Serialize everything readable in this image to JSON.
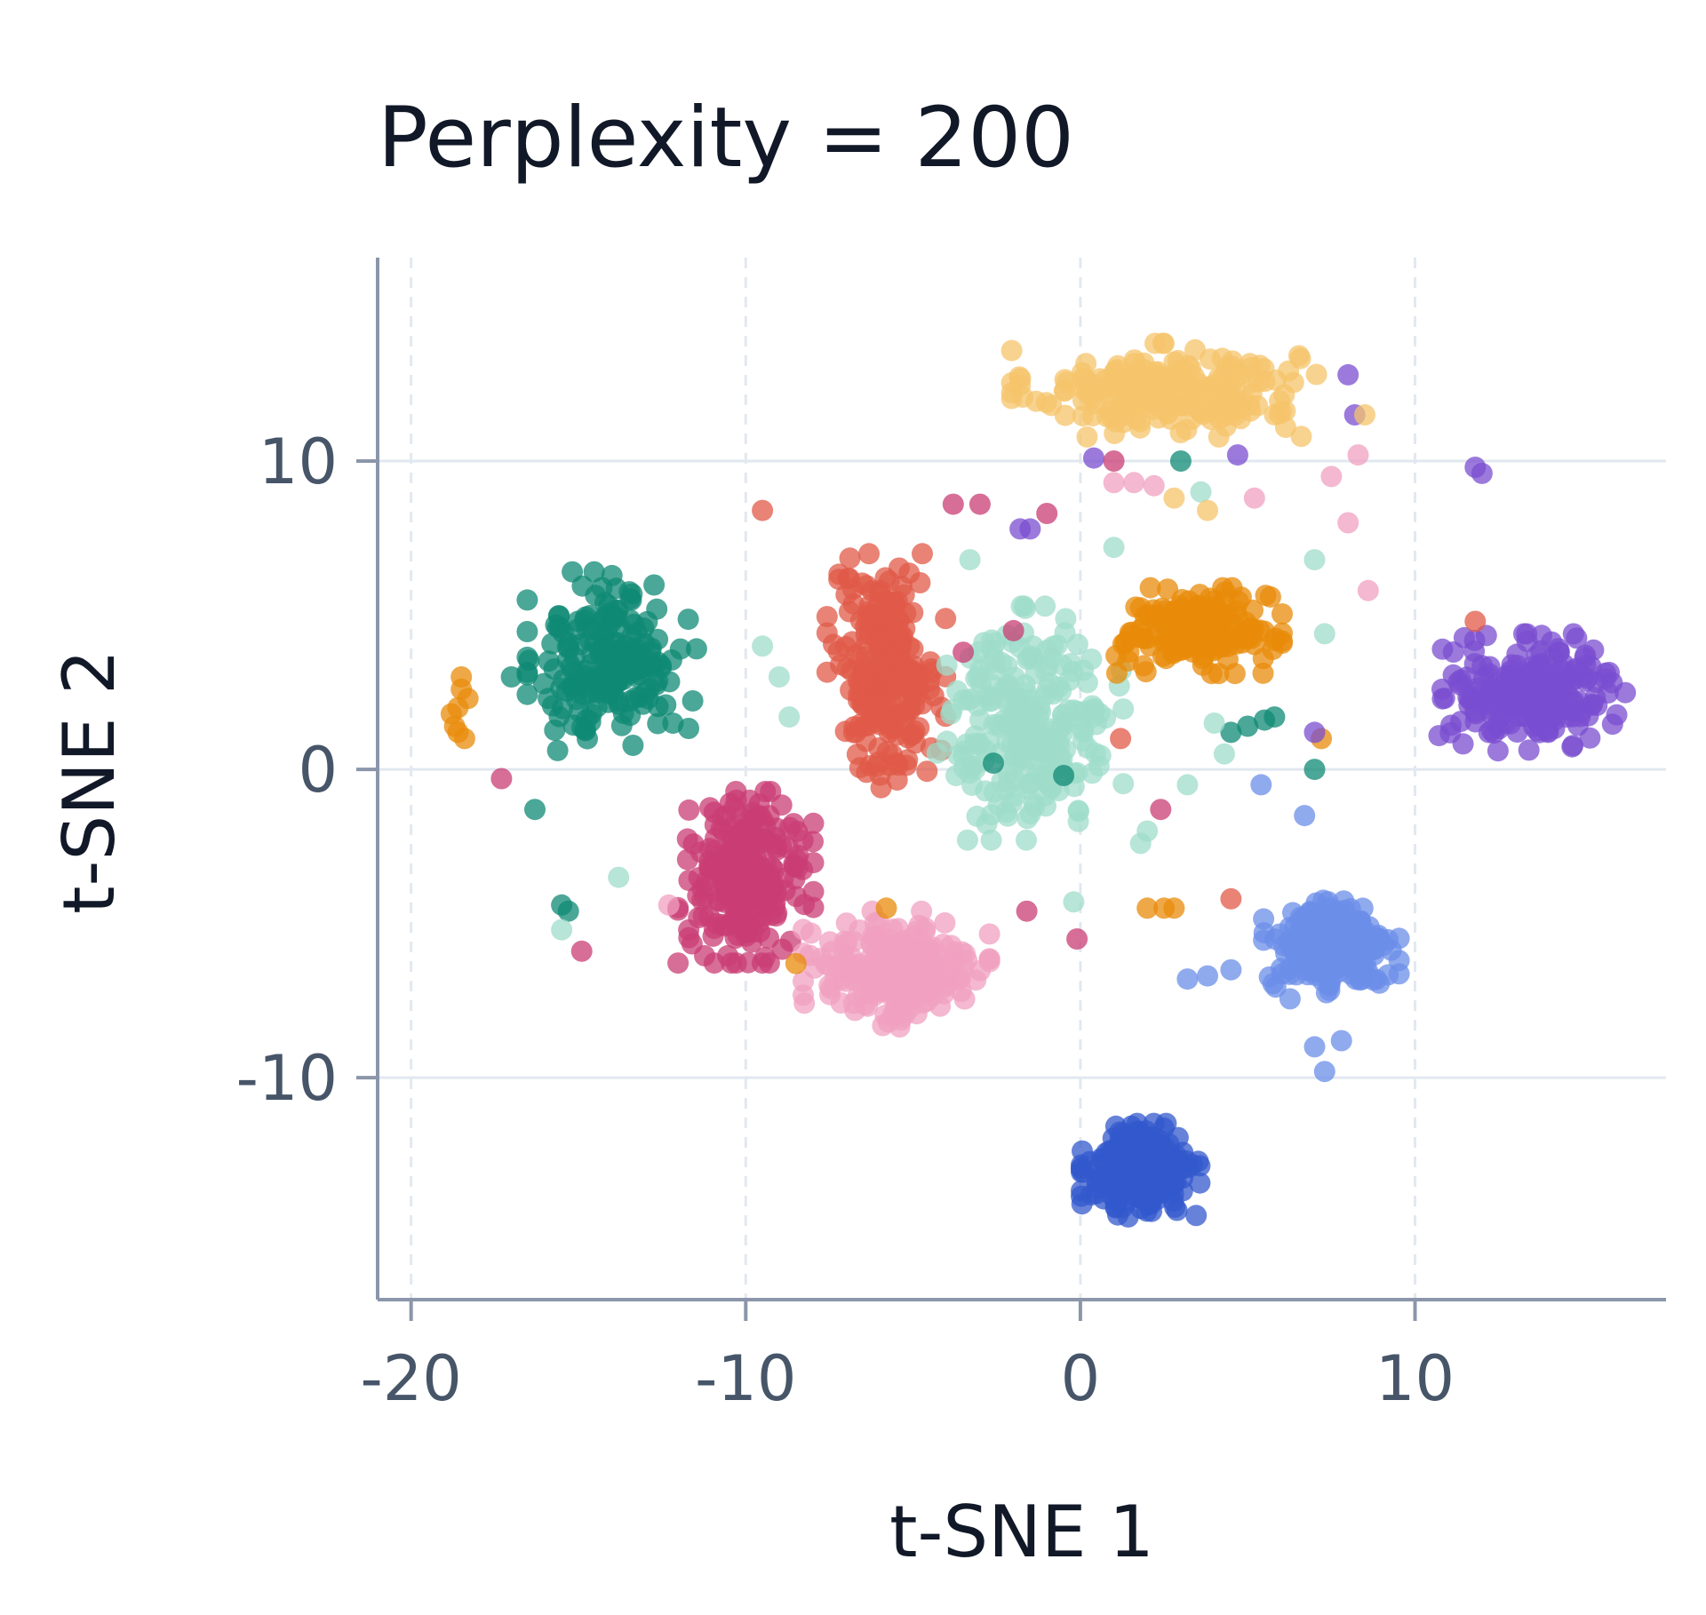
{
  "chart_data": {
    "type": "scatter",
    "title": "Perplexity = 200",
    "xlabel": "t-SNE 1",
    "ylabel": "t-SNE 2",
    "xlim": [
      -21,
      17.5
    ],
    "ylim": [
      -17.2,
      16.6
    ],
    "xticks": [
      -20,
      -10,
      0,
      10
    ],
    "xtick_labels": [
      "-20",
      "-10",
      "0",
      "10"
    ],
    "yticks": [
      10,
      0,
      -10
    ],
    "ytick_labels": [
      "10",
      "0",
      "-10"
    ],
    "grid": {
      "x": "dashed",
      "y": "solid"
    },
    "legend": "none",
    "marker_opacity": 0.75,
    "clusters": [
      {
        "id": "yellow",
        "color": "#f5c46b",
        "center": [
          2.5,
          12.3
        ],
        "spread": [
          3.6,
          1.2
        ],
        "count": 230
      },
      {
        "id": "teal",
        "color": "#0f8a74",
        "center": [
          -14.0,
          3.5
        ],
        "spread": [
          2.0,
          2.3
        ],
        "count": 200
      },
      {
        "id": "red-orange",
        "color": "#e05a48",
        "center": [
          -5.8,
          3.2
        ],
        "spread": [
          1.4,
          3.0
        ],
        "count": 230
      },
      {
        "id": "mint",
        "color": "#9fdcc9",
        "center": [
          -1.5,
          1.5
        ],
        "spread": [
          2.2,
          3.0
        ],
        "count": 240
      },
      {
        "id": "orange",
        "color": "#e88b0a",
        "center": [
          3.5,
          4.5
        ],
        "spread": [
          2.0,
          1.1
        ],
        "count": 180
      },
      {
        "id": "violet",
        "color": "#7a4ed0",
        "center": [
          13.5,
          2.5
        ],
        "spread": [
          2.2,
          1.5
        ],
        "count": 230
      },
      {
        "id": "crimson",
        "color": "#c93d74",
        "center": [
          -10.0,
          -3.5
        ],
        "spread": [
          1.6,
          2.2
        ],
        "count": 240
      },
      {
        "id": "pink",
        "color": "#f0a0c0",
        "center": [
          -5.5,
          -6.5
        ],
        "spread": [
          2.2,
          1.5
        ],
        "count": 240
      },
      {
        "id": "periwinkle",
        "color": "#6b8ee8",
        "center": [
          7.5,
          -5.8
        ],
        "spread": [
          1.6,
          1.3
        ],
        "count": 230
      },
      {
        "id": "blue",
        "color": "#3358cc",
        "center": [
          1.8,
          -13.0
        ],
        "spread": [
          1.4,
          1.2
        ],
        "count": 270
      }
    ],
    "extra_points": [
      {
        "cluster": "orange",
        "points": [
          [
            -18.7,
            1.4
          ],
          [
            -18.6,
            2.0
          ],
          [
            -18.5,
            2.6
          ],
          [
            -18.4,
            1.0
          ],
          [
            -18.8,
            1.8
          ],
          [
            -18.5,
            3.0
          ],
          [
            -18.3,
            2.3
          ],
          [
            -18.6,
            1.2
          ],
          [
            -5.8,
            -4.5
          ],
          [
            -8.5,
            -6.3
          ],
          [
            7.2,
            1.0
          ],
          [
            2.5,
            -4.5
          ],
          [
            2.0,
            -4.5
          ],
          [
            2.8,
            -4.5
          ]
        ]
      },
      {
        "cluster": "teal",
        "points": [
          [
            -17.0,
            3.0
          ],
          [
            -16.3,
            -1.3
          ],
          [
            -15.5,
            -4.4
          ],
          [
            -15.3,
            -4.6
          ],
          [
            -0.5,
            -0.2
          ],
          [
            -2.6,
            0.2
          ],
          [
            4.5,
            1.2
          ],
          [
            5.0,
            1.4
          ],
          [
            5.5,
            1.6
          ],
          [
            5.8,
            1.7
          ],
          [
            7.0,
            0.0
          ],
          [
            3.0,
            10.0
          ]
        ]
      },
      {
        "cluster": "violet",
        "points": [
          [
            -1.8,
            7.8
          ],
          [
            -1.5,
            7.8
          ],
          [
            0.4,
            10.1
          ],
          [
            4.7,
            10.2
          ],
          [
            8.0,
            12.8
          ],
          [
            8.2,
            11.5
          ],
          [
            11.8,
            9.8
          ],
          [
            12.0,
            9.6
          ],
          [
            7.0,
            1.2
          ]
        ]
      },
      {
        "cluster": "pink",
        "points": [
          [
            1.0,
            9.3
          ],
          [
            1.6,
            9.3
          ],
          [
            2.2,
            9.2
          ],
          [
            5.2,
            8.8
          ],
          [
            7.5,
            9.5
          ],
          [
            8.3,
            10.2
          ],
          [
            8.0,
            8.0
          ],
          [
            8.6,
            5.8
          ],
          [
            -12.3,
            -4.4
          ]
        ]
      },
      {
        "cluster": "crimson",
        "points": [
          [
            -3.8,
            8.6
          ],
          [
            -3.0,
            8.6
          ],
          [
            -1.0,
            8.3
          ],
          [
            -2.0,
            4.5
          ],
          [
            -3.5,
            3.8
          ],
          [
            -17.3,
            -0.3
          ],
          [
            -14.9,
            -5.9
          ],
          [
            -1.6,
            -4.6
          ],
          [
            -0.1,
            -5.5
          ],
          [
            2.4,
            -1.3
          ],
          [
            1.0,
            10.0
          ],
          [
            -9.3,
            -1.5
          ]
        ]
      },
      {
        "cluster": "mint",
        "points": [
          [
            -9.5,
            4.0
          ],
          [
            -9.0,
            3.0
          ],
          [
            -8.7,
            1.7
          ],
          [
            -13.8,
            -3.5
          ],
          [
            -15.5,
            -5.2
          ],
          [
            4.0,
            1.5
          ],
          [
            4.3,
            0.5
          ],
          [
            3.2,
            -0.5
          ],
          [
            2.0,
            -2.0
          ],
          [
            1.8,
            -2.4
          ],
          [
            7.0,
            6.8
          ],
          [
            7.3,
            4.4
          ],
          [
            1.0,
            7.2
          ],
          [
            3.6,
            9.0
          ],
          [
            -3.3,
            6.8
          ],
          [
            -0.2,
            -4.3
          ]
        ]
      },
      {
        "cluster": "periwinkle",
        "points": [
          [
            5.4,
            -0.5
          ],
          [
            6.7,
            -1.5
          ],
          [
            3.2,
            -6.8
          ],
          [
            3.8,
            -6.7
          ],
          [
            4.5,
            -6.5
          ],
          [
            7.0,
            -9.0
          ],
          [
            7.3,
            -9.8
          ],
          [
            7.8,
            -8.8
          ]
        ]
      },
      {
        "cluster": "red-orange",
        "points": [
          [
            -9.5,
            8.4
          ],
          [
            4.5,
            -4.2
          ],
          [
            11.8,
            4.8
          ],
          [
            1.2,
            1.0
          ]
        ]
      },
      {
        "cluster": "yellow",
        "points": [
          [
            4.8,
            12.8
          ],
          [
            5.8,
            11.5
          ],
          [
            6.6,
            10.8
          ],
          [
            8.5,
            11.5
          ],
          [
            2.8,
            8.8
          ],
          [
            3.8,
            8.4
          ]
        ]
      }
    ]
  }
}
